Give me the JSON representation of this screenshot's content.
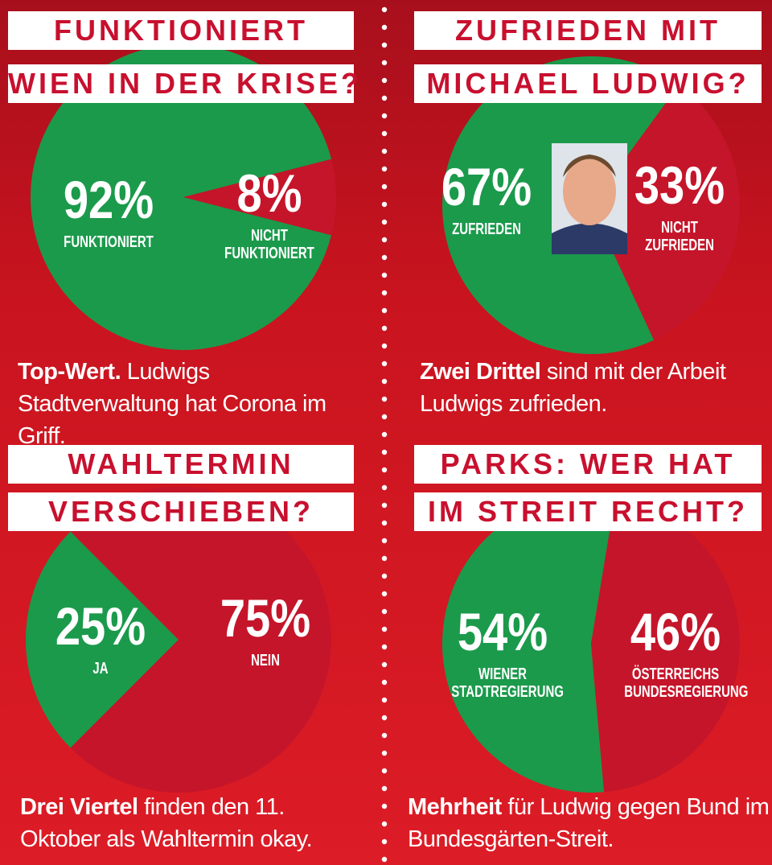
{
  "chart_data": [
    {
      "type": "pie",
      "title": [
        "FUNKTIONIERT",
        "WIEN IN DER KRISE?"
      ],
      "categories": [
        "FUNKTIONIERT",
        "NICHT FUNKTIONIERT"
      ],
      "values": [
        92,
        8
      ],
      "value_labels": [
        "92%",
        "8%"
      ],
      "colors": [
        "#1b9a4b",
        "#c5152a"
      ],
      "caption": {
        "bold": "Top-Wert.",
        "text": "Ludwigs Stadtverwaltung hat Corona im Griff."
      }
    },
    {
      "type": "pie",
      "title": [
        "ZUFRIEDEN MIT",
        "MICHAEL LUDWIG?"
      ],
      "categories": [
        "ZUFRIEDEN",
        "NICHT ZUFRIEDEN"
      ],
      "values": [
        67,
        33
      ],
      "value_labels": [
        "67%",
        "33%"
      ],
      "colors": [
        "#1b9a4b",
        "#c5152a"
      ],
      "caption": {
        "bold": "Zwei Drittel",
        "text": "sind mit der Arbeit Ludwigs zufrieden."
      }
    },
    {
      "type": "pie",
      "title": [
        "WAHLTERMIN",
        "VERSCHIEBEN?"
      ],
      "categories": [
        "JA",
        "NEIN"
      ],
      "values": [
        25,
        75
      ],
      "value_labels": [
        "25%",
        "75%"
      ],
      "colors": [
        "#1b9a4b",
        "#c5152a"
      ],
      "caption": {
        "bold": "Drei Viertel",
        "text": "finden den 11. Oktober als Wahltermin okay."
      }
    },
    {
      "type": "pie",
      "title": [
        "PARKS: WER HAT",
        "IM STREIT RECHT?"
      ],
      "categories": [
        "WIENER STADTREGIERUNG",
        "ÖSTERREICHS BUNDESREGIERUNG"
      ],
      "values": [
        54,
        46
      ],
      "value_labels": [
        "54%",
        "46%"
      ],
      "colors": [
        "#1b9a4b",
        "#c5152a"
      ],
      "caption": {
        "bold": "Mehrheit",
        "text": "für Ludwig gegen Bund im Bundesgärten-Streit."
      }
    }
  ]
}
